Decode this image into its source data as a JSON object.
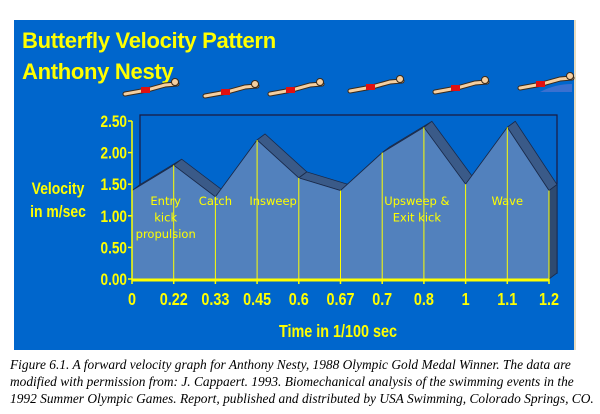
{
  "chart_data": {
    "type": "area",
    "title": "Butterfly Velocity Pattern",
    "subtitle": "Anthony Nesty",
    "xlabel": "Time in 1/100 sec",
    "ylabel": [
      "Velocity",
      "in m/sec"
    ],
    "categories": [
      "0",
      "0.22",
      "0.33",
      "0.45",
      "0.6",
      "0.67",
      "0.7",
      "0.8",
      "1",
      "1.1",
      "1.2"
    ],
    "values": [
      1.4,
      1.8,
      1.3,
      2.2,
      1.6,
      1.4,
      2.0,
      2.4,
      1.5,
      2.4,
      1.4
    ],
    "yticks": [
      "0.00",
      "0.50",
      "1.00",
      "1.50",
      "2.00",
      "2.50"
    ],
    "ylim": [
      0,
      2.5
    ],
    "grid": false,
    "style": "3d",
    "annotations": [
      {
        "lines": [
          "Entry",
          "kick",
          "propulsion"
        ],
        "at": "0.22"
      },
      {
        "lines": [
          "Catch"
        ],
        "at": "0.33"
      },
      {
        "lines": [
          "Insweep"
        ],
        "at": "0.45"
      },
      {
        "lines": [
          "Upsweep &",
          "Exit kick"
        ],
        "at": "0.8"
      },
      {
        "lines": [
          "Wave"
        ],
        "at": "1.1"
      }
    ]
  },
  "colors": {
    "background": "#0066cc",
    "text": "#ffff00",
    "area": "#5281bd",
    "shadow": "#3a5a88",
    "lines": "#ffff00"
  },
  "caption": "Figure 6.1. A forward velocity graph for Anthony Nesty, 1988 Olympic Gold Medal Winner. The data are modified with permission from: J. Cappaert. 1993. Biomechanical analysis of the swimming events in the 1992 Summer Olympic Games. Report, published and distributed by USA Swimming, Colorado Springs, CO."
}
